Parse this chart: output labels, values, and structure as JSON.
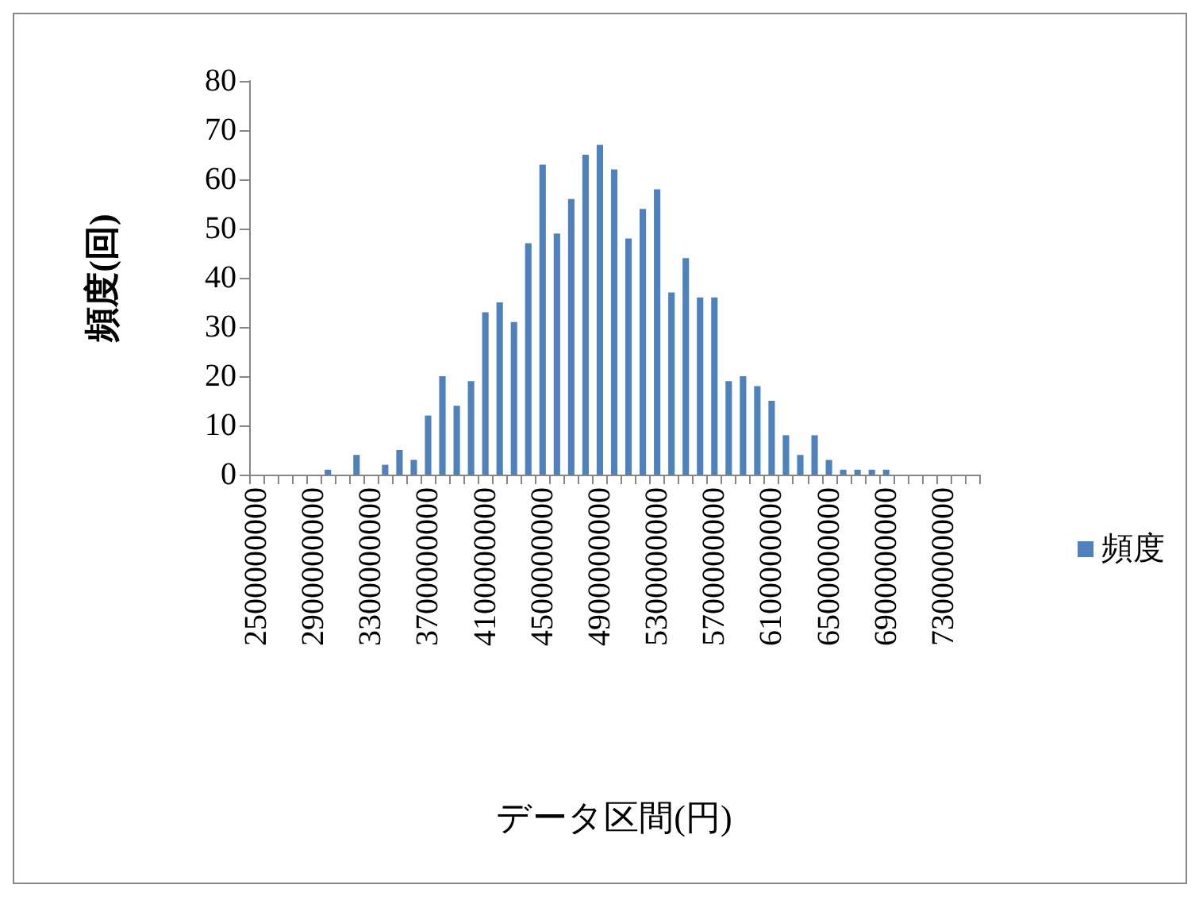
{
  "chart_data": {
    "type": "bar",
    "xlabel": "データ区間(円)",
    "ylabel": "頻度(回)",
    "categories": [
      "2500000000",
      null,
      null,
      null,
      "2900000000",
      null,
      null,
      null,
      "3300000000",
      null,
      null,
      null,
      "3700000000",
      null,
      null,
      null,
      "4100000000",
      null,
      null,
      null,
      "4500000000",
      null,
      null,
      null,
      "4900000000",
      null,
      null,
      null,
      "5300000000",
      null,
      null,
      null,
      "5700000000",
      null,
      null,
      null,
      "6100000000",
      null,
      null,
      null,
      "6500000000",
      null,
      null,
      null,
      "6900000000",
      null,
      null,
      null,
      "7300000000",
      null,
      null
    ],
    "series": [
      {
        "name": "頻度",
        "color": "#4f81bd",
        "values": [
          0,
          0,
          0,
          0,
          0,
          1,
          0,
          4,
          0,
          2,
          5,
          3,
          12,
          20,
          14,
          19,
          33,
          35,
          31,
          47,
          63,
          49,
          56,
          65,
          67,
          62,
          48,
          54,
          58,
          37,
          44,
          36,
          36,
          19,
          20,
          18,
          15,
          8,
          4,
          8,
          3,
          1,
          1,
          1,
          1,
          0,
          0,
          0,
          0,
          0,
          0
        ]
      }
    ],
    "ylim": [
      0,
      80
    ],
    "yticks": [
      0,
      10,
      20,
      30,
      40,
      50,
      60,
      70,
      80
    ],
    "grid": false,
    "legend": "right"
  }
}
